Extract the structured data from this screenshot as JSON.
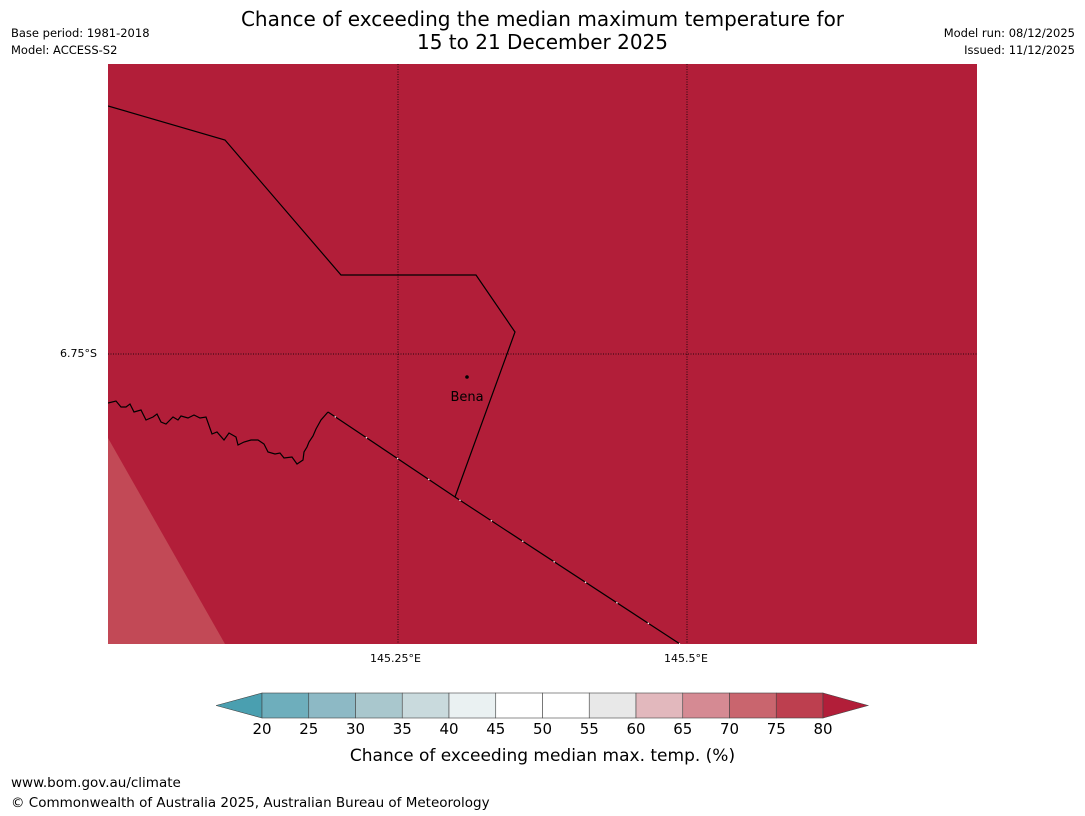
{
  "title": {
    "line1": "Chance of exceeding the median maximum temperature for",
    "line2": "15 to 21 December 2025"
  },
  "meta": {
    "base_period": "Base period: 1981-2018",
    "model": "Model: ACCESS-S2",
    "model_run": "Model run: 08/12/2025",
    "issued": "Issued: 11/12/2025"
  },
  "map": {
    "place_label": "Bena",
    "lat_label": "6.75°S",
    "lon_labels": [
      "145.25°E",
      "145.5°E"
    ],
    "colors": {
      "main_fill": "#b21e39",
      "lower_fill": "#c24956",
      "border": "#000000"
    }
  },
  "legend": {
    "title": "Chance of exceeding median max. temp. (%)",
    "ticks": [
      "20",
      "25",
      "30",
      "35",
      "40",
      "45",
      "50",
      "55",
      "60",
      "65",
      "70",
      "75",
      "80"
    ],
    "colors": [
      "#4a9fb0",
      "#6eaebc",
      "#8db9c5",
      "#a9c7cd",
      "#c9dadd",
      "#eaf1f2",
      "#ffffff",
      "#ffffff",
      "#e8e8e8",
      "#e2b8bd",
      "#d58a93",
      "#c9656e",
      "#bd3f4f",
      "#b21e39"
    ]
  },
  "footer": {
    "url": "www.bom.gov.au/climate",
    "copyright": "© Commonwealth of Australia 2025, Australian Bureau of Meteorology"
  }
}
